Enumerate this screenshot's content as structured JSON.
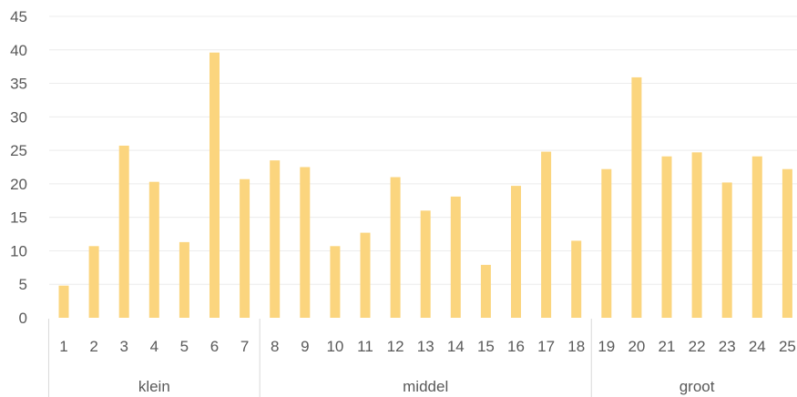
{
  "chart_data": {
    "type": "bar",
    "categories": [
      "1",
      "2",
      "3",
      "4",
      "5",
      "6",
      "7",
      "8",
      "9",
      "10",
      "11",
      "12",
      "13",
      "14",
      "15",
      "16",
      "17",
      "18",
      "19",
      "20",
      "21",
      "22",
      "23",
      "24",
      "25"
    ],
    "values": [
      4.8,
      10.7,
      25.7,
      20.3,
      11.3,
      39.6,
      20.7,
      23.5,
      22.5,
      10.7,
      12.7,
      21.0,
      16.0,
      18.1,
      7.9,
      19.7,
      24.8,
      11.5,
      22.2,
      35.9,
      24.1,
      24.7,
      20.2,
      24.1,
      22.2
    ],
    "groups": [
      {
        "label": "klein",
        "count": 7
      },
      {
        "label": "middel",
        "count": 11
      },
      {
        "label": "groot",
        "count": 7
      }
    ],
    "ylim": [
      0,
      45
    ],
    "yticks": [
      0,
      5,
      10,
      15,
      20,
      25,
      30,
      35,
      40,
      45
    ],
    "grid": true,
    "title": "",
    "xlabel": "",
    "ylabel": "",
    "colors": {
      "bar": "#fbd57e",
      "axis_text": "#595959",
      "grid": "#ececec"
    }
  }
}
